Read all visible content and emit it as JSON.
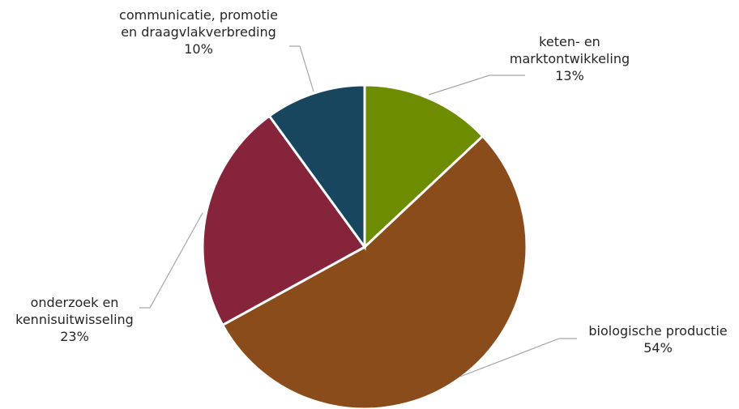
{
  "chart_data": {
    "type": "pie",
    "title": "",
    "start_angle_deg": 0,
    "direction": "clockwise",
    "slices": [
      {
        "label_lines": [
          "keten- en",
          "marktontwikkeling"
        ],
        "value": 13,
        "display": "13%",
        "color": "#6e8c00"
      },
      {
        "label_lines": [
          "biologische productie"
        ],
        "value": 54,
        "display": "54%",
        "color": "#8b4c1c"
      },
      {
        "label_lines": [
          "onderzoek en",
          "kennisuitwisseling"
        ],
        "value": 23,
        "display": "23%",
        "color": "#86243c"
      },
      {
        "label_lines": [
          "communicatie, promotie",
          "en draagvlakverbreding"
        ],
        "value": 10,
        "display": "10%",
        "color": "#17465e"
      }
    ]
  }
}
